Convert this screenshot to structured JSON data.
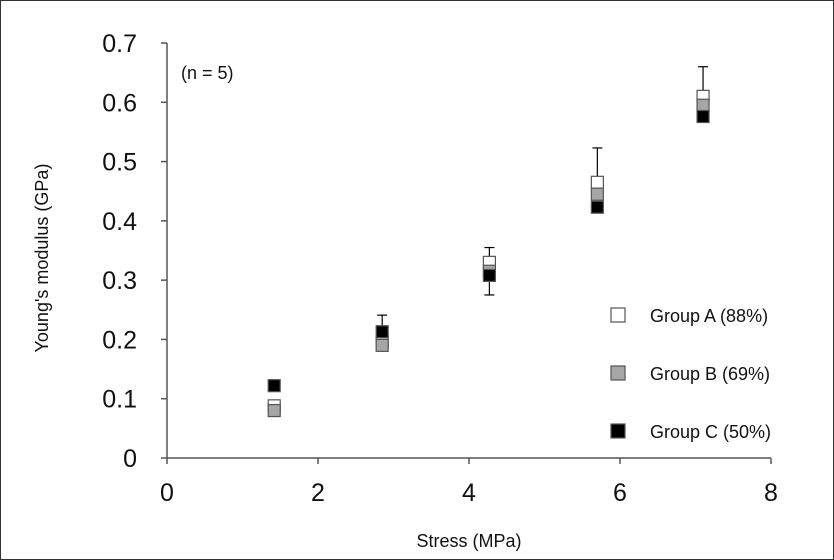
{
  "chart_data": {
    "type": "scatter",
    "title": "",
    "annotation": "(n = 5)",
    "xlabel": "Stress (MPa)",
    "ylabel": "Young's modulus  (GPa)",
    "xlim": [
      0,
      8
    ],
    "ylim": [
      0,
      0.7
    ],
    "xticks": [
      "0",
      "2",
      "4",
      "6",
      "8"
    ],
    "yticks": [
      "0",
      "0.1",
      "0.2",
      "0.3",
      "0.4",
      "0.5",
      "0.6",
      "0.7"
    ],
    "grid": false,
    "legend_position": "bottom-right",
    "x": [
      1.42,
      2.85,
      4.27,
      5.7,
      7.1
    ],
    "series": [
      {
        "name": "Group A (88%)",
        "color": "#ffffff",
        "values": [
          0.088,
          0.196,
          0.33,
          0.465,
          0.61
        ],
        "error_plus": [
          0.0,
          0.0,
          0.025,
          0.058,
          0.05
        ],
        "error_minus": [
          0.0,
          0.0,
          0.0,
          0.0,
          0.0
        ]
      },
      {
        "name": "Group B (69%)",
        "color": "#a6a6a6",
        "values": [
          0.08,
          0.19,
          0.315,
          0.445,
          0.595
        ],
        "error_plus": [
          0.0,
          0.0,
          0.0,
          0.0,
          0.0
        ],
        "error_minus": [
          0.0,
          0.0,
          0.0,
          0.0,
          0.0
        ]
      },
      {
        "name": "Group C (50%)",
        "color": "#000000",
        "values": [
          0.122,
          0.213,
          0.308,
          0.423,
          0.576
        ],
        "error_plus": [
          0.0,
          0.028,
          0.0,
          0.0,
          0.0
        ],
        "error_minus": [
          0.0,
          0.0,
          0.033,
          0.0,
          0.0
        ]
      }
    ]
  }
}
